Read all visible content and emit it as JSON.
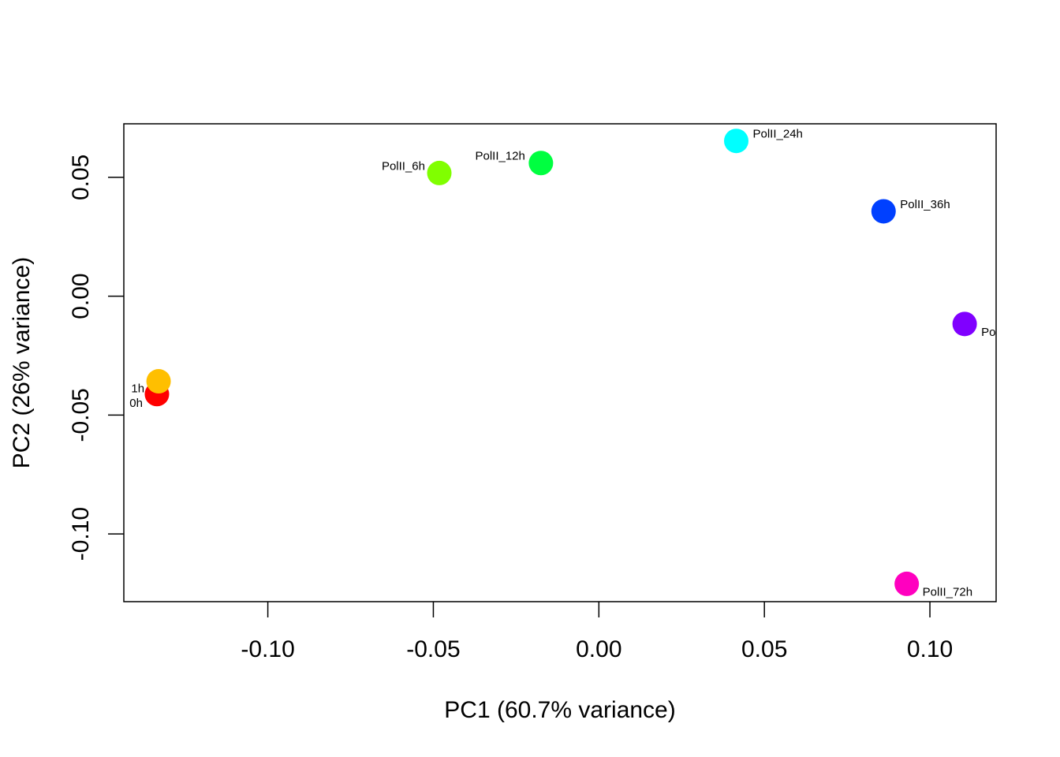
{
  "chart_data": {
    "type": "scatter",
    "title": "",
    "xlabel": "PC1 (60.7% variance)",
    "ylabel": "PC2 (26% variance)",
    "xlim": [
      -0.1435,
      0.12
    ],
    "ylim": [
      -0.1285,
      0.0725
    ],
    "xticks": [
      -0.1,
      -0.05,
      0.0,
      0.05,
      0.1
    ],
    "xtick_labels": [
      "-0.10",
      "-0.05",
      "0.00",
      "0.05",
      "0.10"
    ],
    "yticks": [
      -0.1,
      -0.05,
      0.0,
      0.05
    ],
    "ytick_labels": [
      "-0.10",
      "-0.05",
      "0.00",
      "0.05"
    ],
    "grid": false,
    "legend": "none",
    "points": [
      {
        "label": "0h",
        "x": -0.1335,
        "y": -0.0412,
        "color": "#ff0000"
      },
      {
        "label": "1h",
        "x": -0.133,
        "y": -0.0358,
        "color": "#ffbf00"
      },
      {
        "label": "PolII_6h",
        "x": -0.0482,
        "y": 0.0518,
        "color": "#80ff00"
      },
      {
        "label": "PolII_12h",
        "x": -0.0175,
        "y": 0.056,
        "color": "#00ff40"
      },
      {
        "label": "PolII_24h",
        "x": 0.0415,
        "y": 0.0653,
        "color": "#00ffff"
      },
      {
        "label": "PolII_36h",
        "x": 0.086,
        "y": 0.0357,
        "color": "#0040ff"
      },
      {
        "label": "Po",
        "x": 0.1105,
        "y": -0.0117,
        "color": "#8000ff"
      },
      {
        "label": "PolII_72h",
        "x": 0.093,
        "y": -0.121,
        "color": "#ff00bf"
      }
    ]
  }
}
